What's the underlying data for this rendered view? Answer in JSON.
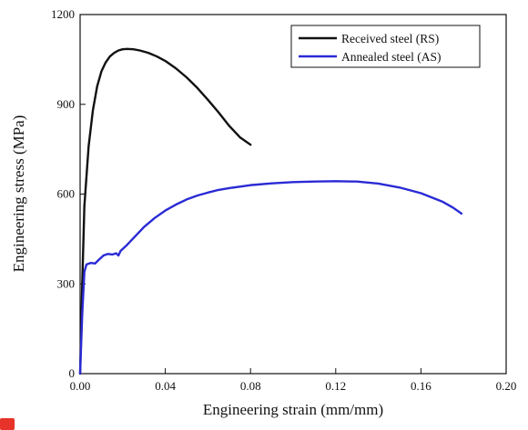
{
  "chart_data": {
    "type": "line",
    "title": "",
    "xlabel": "Engineering strain (mm/mm)",
    "ylabel": "Engineering stress (MPa)",
    "xlim": [
      0,
      0.2
    ],
    "ylim": [
      0,
      1200
    ],
    "xticks": [
      "0.00",
      "0.04",
      "0.08",
      "0.12",
      "0.16",
      "0.20"
    ],
    "yticks": [
      "0",
      "300",
      "600",
      "900",
      "1200"
    ],
    "grid": false,
    "legend_position": "top-right",
    "series": [
      {
        "name": "Received steel (RS)",
        "color": "#111111",
        "x": [
          0,
          0.001,
          0.002,
          0.004,
          0.006,
          0.008,
          0.01,
          0.012,
          0.014,
          0.016,
          0.018,
          0.02,
          0.022,
          0.025,
          0.028,
          0.032,
          0.036,
          0.04,
          0.045,
          0.05,
          0.055,
          0.06,
          0.065,
          0.07,
          0.075,
          0.08
        ],
        "y": [
          0,
          300,
          560,
          760,
          880,
          960,
          1010,
          1040,
          1060,
          1072,
          1080,
          1084,
          1085,
          1084,
          1080,
          1072,
          1060,
          1045,
          1020,
          990,
          955,
          915,
          873,
          828,
          790,
          765
        ]
      },
      {
        "name": "Annealed steel (AS)",
        "color": "#2a2ad6",
        "x": [
          0,
          0.001,
          0.002,
          0.003,
          0.005,
          0.007,
          0.009,
          0.011,
          0.013,
          0.015,
          0.017,
          0.018,
          0.019,
          0.022,
          0.026,
          0.03,
          0.035,
          0.04,
          0.045,
          0.05,
          0.055,
          0.06,
          0.065,
          0.07,
          0.075,
          0.08,
          0.09,
          0.1,
          0.11,
          0.12,
          0.13,
          0.14,
          0.15,
          0.16,
          0.17,
          0.175,
          0.179
        ],
        "y": [
          0,
          200,
          340,
          365,
          370,
          368,
          382,
          395,
          400,
          398,
          402,
          395,
          410,
          430,
          460,
          490,
          520,
          545,
          565,
          582,
          595,
          605,
          614,
          620,
          625,
          630,
          636,
          640,
          642,
          643,
          642,
          635,
          622,
          603,
          575,
          555,
          535
        ]
      }
    ]
  }
}
